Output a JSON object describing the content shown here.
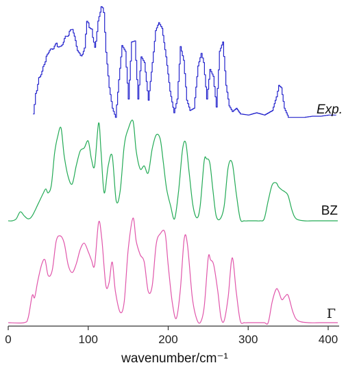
{
  "chart_data": {
    "type": "line",
    "xlabel": "wavenumber/cm⁻¹",
    "ylabel": "",
    "xlim": [
      0,
      412
    ],
    "xticks": [
      0,
      100,
      200,
      300,
      400
    ],
    "grid": false,
    "series": [
      {
        "name": "Exp.",
        "color": "#2222cc",
        "x": [
          31,
          34,
          38,
          42,
          46,
          50,
          55,
          60,
          65,
          70,
          75,
          80,
          85,
          90,
          95,
          98,
          101,
          104,
          108,
          112,
          116,
          119,
          122,
          126,
          130,
          134,
          138,
          142,
          146,
          150,
          154,
          158,
          162,
          166,
          170,
          175,
          180,
          184,
          188,
          192,
          197,
          202,
          207,
          211,
          215,
          219,
          223,
          227,
          232,
          237,
          241,
          244,
          248,
          252,
          256,
          260,
          264,
          268,
          272,
          276,
          280,
          285,
          290,
          300,
          310,
          320,
          330,
          335,
          338,
          341,
          345,
          350,
          360,
          370,
          380,
          390,
          400,
          410
        ],
        "y": [
          0.05,
          0.22,
          0.36,
          0.43,
          0.52,
          0.59,
          0.62,
          0.66,
          0.63,
          0.71,
          0.75,
          0.8,
          0.64,
          0.55,
          0.62,
          0.87,
          0.8,
          0.78,
          0.62,
          0.86,
          1.0,
          0.94,
          0.59,
          0.28,
          0.1,
          0.02,
          0.35,
          0.65,
          0.6,
          0.18,
          0.68,
          0.69,
          0.18,
          0.55,
          0.5,
          0.17,
          0.5,
          0.78,
          0.85,
          0.8,
          0.55,
          0.25,
          0.06,
          0.18,
          0.64,
          0.52,
          0.17,
          0.08,
          0.1,
          0.47,
          0.58,
          0.5,
          0.18,
          0.44,
          0.38,
          0.11,
          0.6,
          0.68,
          0.3,
          0.12,
          0.07,
          0.1,
          0.05,
          0.04,
          0.06,
          0.04,
          0.08,
          0.2,
          0.3,
          0.28,
          0.1,
          0.02,
          0.02,
          0.02,
          0.03,
          0.03,
          0.04,
          0.04
        ]
      },
      {
        "name": "BZ",
        "color": "#22aa55",
        "x": [
          0,
          5,
          10,
          15,
          20,
          25,
          30,
          38,
          44,
          47,
          50,
          54,
          58,
          62,
          66,
          70,
          75,
          80,
          85,
          90,
          95,
          100,
          104,
          108,
          113,
          116,
          120,
          125,
          130,
          135,
          140,
          145,
          150,
          156,
          160,
          165,
          170,
          175,
          180,
          185,
          190,
          194,
          198,
          203,
          208,
          213,
          218,
          222,
          226,
          231,
          236,
          240,
          245,
          248,
          252,
          256,
          260,
          265,
          270,
          275,
          280,
          285,
          290,
          295,
          300,
          305,
          310,
          315,
          320,
          325,
          330,
          335,
          338,
          342,
          346,
          350,
          355,
          360,
          370,
          380,
          390,
          400,
          412
        ],
        "y": [
          0.0,
          0.0,
          0.02,
          0.09,
          0.05,
          0.02,
          0.05,
          0.18,
          0.28,
          0.32,
          0.28,
          0.36,
          0.68,
          0.85,
          0.93,
          0.65,
          0.44,
          0.37,
          0.55,
          0.7,
          0.73,
          0.8,
          0.62,
          0.55,
          0.98,
          0.7,
          0.28,
          0.55,
          0.65,
          0.2,
          0.3,
          0.75,
          0.92,
          1.0,
          0.7,
          0.52,
          0.55,
          0.48,
          0.72,
          0.86,
          0.82,
          0.58,
          0.32,
          0.15,
          0.02,
          0.3,
          0.72,
          0.78,
          0.5,
          0.15,
          0.03,
          0.15,
          0.6,
          0.62,
          0.58,
          0.3,
          0.05,
          0.02,
          0.15,
          0.54,
          0.58,
          0.28,
          0.02,
          0.0,
          0.0,
          0.0,
          0.0,
          0.0,
          0.02,
          0.2,
          0.36,
          0.38,
          0.34,
          0.31,
          0.29,
          0.25,
          0.1,
          0.02,
          0.0,
          0.0,
          0.0,
          0.0,
          0.0
        ]
      },
      {
        "name": "Γ",
        "color": "#e055aa",
        "x": [
          0,
          20,
          25,
          30,
          33,
          37,
          42,
          46,
          50,
          55,
          60,
          65,
          70,
          75,
          80,
          85,
          90,
          95,
          100,
          104,
          108,
          113,
          117,
          122,
          126,
          130,
          134,
          140,
          145,
          150,
          156,
          160,
          165,
          170,
          175,
          180,
          185,
          190,
          196,
          200,
          205,
          210,
          215,
          220,
          224,
          230,
          235,
          240,
          245,
          250,
          253,
          257,
          262,
          266,
          270,
          275,
          280,
          285,
          290,
          295,
          300,
          310,
          320,
          325,
          330,
          335,
          338,
          342,
          346,
          350,
          356,
          362,
          375,
          390,
          400,
          412
        ],
        "y": [
          0.0,
          0.0,
          0.05,
          0.26,
          0.24,
          0.4,
          0.56,
          0.6,
          0.45,
          0.5,
          0.78,
          0.83,
          0.76,
          0.55,
          0.48,
          0.56,
          0.7,
          0.76,
          0.68,
          0.6,
          0.55,
          0.96,
          0.8,
          0.36,
          0.38,
          0.58,
          0.3,
          0.1,
          0.2,
          0.7,
          1.0,
          0.78,
          0.65,
          0.58,
          0.3,
          0.35,
          0.75,
          0.85,
          0.86,
          0.55,
          0.2,
          0.04,
          0.3,
          0.8,
          0.75,
          0.25,
          0.05,
          0.0,
          0.15,
          0.62,
          0.6,
          0.55,
          0.3,
          0.05,
          0.02,
          0.25,
          0.62,
          0.3,
          0.02,
          0.0,
          0.0,
          0.0,
          0.0,
          0.0,
          0.2,
          0.32,
          0.3,
          0.22,
          0.25,
          0.26,
          0.1,
          0.02,
          0.0,
          0.0,
          0.0,
          0.0
        ]
      }
    ]
  }
}
